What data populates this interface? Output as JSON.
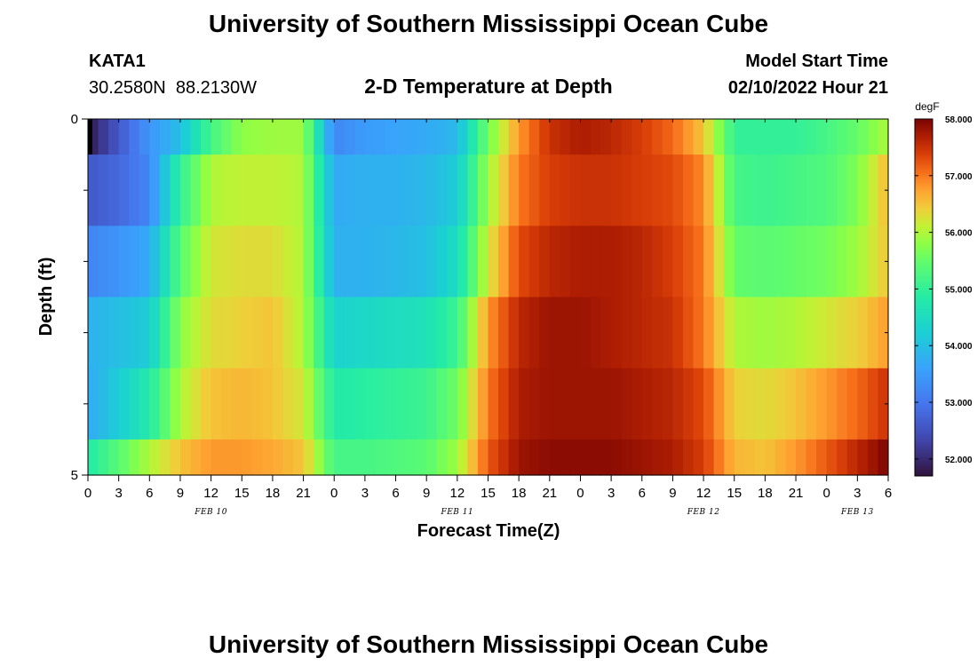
{
  "header": {
    "title": "University of Southern Mississippi Ocean Cube",
    "station_id": "KATA1",
    "station_coords": "30.2580N  88.2130W",
    "plot_title": "2-D Temperature at Depth",
    "model_start_label": "Model Start Time",
    "model_start_value": "02/10/2022 Hour 21"
  },
  "footer": {
    "title": "University of Southern Mississippi Ocean Cube"
  },
  "chart_data": {
    "type": "heatmap",
    "title": "2-D Temperature at Depth",
    "xlabel": "Forecast Time(Z)",
    "ylabel": "Depth (ft)",
    "x_unit": "hours from 02/10/2022 00Z",
    "xlim": [
      0,
      78
    ],
    "ylim": [
      0,
      5
    ],
    "x_ticks": [
      0,
      3,
      6,
      9,
      12,
      15,
      18,
      21,
      24,
      27,
      30,
      33,
      36,
      39,
      42,
      45,
      48,
      51,
      54,
      57,
      60,
      63,
      66,
      69,
      72,
      75,
      78
    ],
    "x_tick_labels": [
      "0",
      "3",
      "6",
      "9",
      "12",
      "15",
      "18",
      "21",
      "0",
      "3",
      "6",
      "9",
      "12",
      "15",
      "18",
      "21",
      "0",
      "3",
      "6",
      "9",
      "12",
      "15",
      "18",
      "21",
      "0",
      "3",
      "6"
    ],
    "y_major_ticks": [
      0,
      5
    ],
    "date_labels": [
      {
        "text": "FEB 10",
        "x": 12
      },
      {
        "text": "FEB 11",
        "x": 36
      },
      {
        "text": "FEB 12",
        "x": 60
      },
      {
        "text": "FEB 13",
        "x": 75
      }
    ],
    "depth_edges": [
      0,
      0.5,
      1.5,
      2.5,
      3.5,
      4.5,
      5.0
    ],
    "profile_times": [
      0,
      3,
      6,
      9,
      12,
      15,
      18,
      21,
      24,
      27,
      30,
      33,
      36,
      39,
      42,
      45,
      48,
      51,
      54,
      57,
      60,
      63,
      66,
      69,
      72,
      75,
      78
    ],
    "temperature_profiles_degF": [
      [
        51.8,
        52.6,
        53.4,
        54.0,
        55.2,
        55.8,
        55.9,
        55.9,
        53.2,
        53.5,
        53.6,
        53.7,
        53.9,
        55.6,
        56.8,
        57.5,
        57.7,
        57.6,
        57.4,
        57.1,
        56.5,
        55.0,
        55.0,
        55.0,
        55.2,
        55.5,
        56.0
      ],
      [
        52.6,
        52.8,
        53.2,
        55.0,
        56.0,
        56.1,
        56.1,
        56.0,
        53.7,
        53.8,
        53.8,
        53.9,
        54.2,
        55.9,
        57.0,
        57.4,
        57.5,
        57.5,
        57.4,
        57.3,
        56.9,
        55.2,
        55.1,
        55.2,
        55.3,
        55.7,
        56.6
      ],
      [
        53.2,
        53.4,
        53.7,
        55.4,
        56.2,
        56.3,
        56.3,
        56.0,
        53.8,
        53.8,
        53.9,
        54.0,
        54.5,
        56.2,
        57.3,
        57.6,
        57.7,
        57.7,
        57.6,
        57.4,
        57.0,
        55.5,
        55.4,
        55.5,
        55.6,
        55.9,
        56.5
      ],
      [
        53.8,
        54.0,
        54.2,
        55.8,
        56.3,
        56.4,
        56.5,
        56.0,
        54.3,
        54.4,
        54.5,
        54.6,
        55.1,
        56.8,
        57.6,
        57.8,
        57.8,
        57.7,
        57.6,
        57.5,
        57.0,
        56.0,
        55.9,
        56.0,
        56.2,
        56.4,
        56.8
      ],
      [
        53.7,
        54.2,
        54.8,
        56.0,
        56.5,
        56.6,
        56.5,
        56.2,
        54.8,
        54.9,
        55.0,
        55.1,
        55.6,
        57.0,
        57.7,
        57.8,
        57.8,
        57.8,
        57.7,
        57.6,
        57.3,
        56.4,
        56.3,
        56.5,
        56.8,
        57.1,
        57.5
      ],
      [
        54.8,
        55.4,
        56.0,
        56.5,
        56.8,
        56.8,
        56.7,
        56.5,
        55.2,
        55.2,
        55.3,
        55.4,
        55.9,
        57.2,
        57.8,
        57.9,
        57.9,
        57.9,
        57.8,
        57.7,
        57.4,
        56.6,
        56.5,
        56.8,
        57.2,
        57.6,
        58.0
      ]
    ],
    "colorbar": {
      "unit": "degF",
      "min": 51.7,
      "max": 58.0,
      "ticks": [
        52.0,
        53.0,
        54.0,
        55.0,
        56.0,
        57.0,
        58.0
      ],
      "tick_labels": [
        "52.000",
        "53.000",
        "54.000",
        "55.000",
        "56.000",
        "57.000",
        "58.000"
      ]
    }
  }
}
